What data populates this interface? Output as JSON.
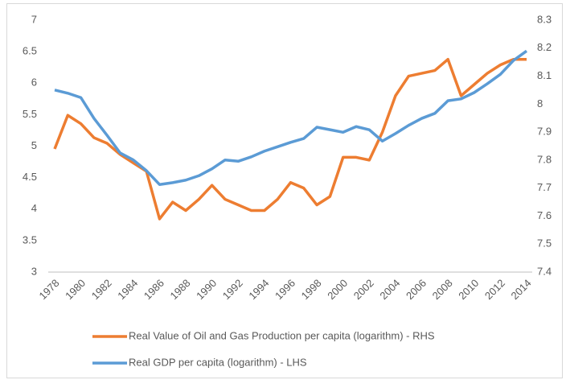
{
  "chart_data": {
    "type": "line",
    "x": [
      1978,
      1979,
      1980,
      1981,
      1982,
      1983,
      1984,
      1985,
      1986,
      1987,
      1988,
      1989,
      1990,
      1991,
      1992,
      1993,
      1994,
      1995,
      1996,
      1997,
      1998,
      1999,
      2000,
      2001,
      2002,
      2003,
      2004,
      2005,
      2006,
      2007,
      2008,
      2009,
      2010,
      2011,
      2012,
      2013,
      2014
    ],
    "xlim": [
      1978,
      2014
    ],
    "xticks": [
      1978,
      1980,
      1982,
      1984,
      1986,
      1988,
      1990,
      1992,
      1994,
      1996,
      1998,
      2000,
      2002,
      2004,
      2006,
      2008,
      2010,
      2012,
      2014
    ],
    "ylim": [
      3,
      7
    ],
    "yticks": [
      3,
      3.5,
      4,
      4.5,
      5,
      5.5,
      6,
      6.5,
      7
    ],
    "y2lim": [
      7.4,
      8.3
    ],
    "y2ticks": [
      7.4,
      7.5,
      7.6,
      7.7,
      7.8,
      7.9,
      8,
      8.1,
      8.2,
      8.3
    ],
    "legend": "bottom",
    "series": [
      {
        "name": "Real Value of Oil and Gas Production per capita (logarithm) - RHS",
        "color": "#ed7d31",
        "axis": "y2",
        "values": [
          7.84,
          7.96,
          7.93,
          7.88,
          7.86,
          7.82,
          7.79,
          7.76,
          7.59,
          7.65,
          7.62,
          7.66,
          7.71,
          7.66,
          7.64,
          7.62,
          7.62,
          7.66,
          7.72,
          7.7,
          7.64,
          7.67,
          7.81,
          7.81,
          7.8,
          7.9,
          8.03,
          8.1,
          8.11,
          8.12,
          8.16,
          8.03,
          8.07,
          8.11,
          8.14,
          8.16,
          8.16
        ]
      },
      {
        "name": "Real GDP per capita (logarithm) - LHS",
        "color": "#5b9bd5",
        "axis": "y",
        "values": [
          5.89,
          5.84,
          5.77,
          5.44,
          5.17,
          4.89,
          4.78,
          4.61,
          4.39,
          4.42,
          4.46,
          4.53,
          4.64,
          4.78,
          4.76,
          4.83,
          4.92,
          4.99,
          5.06,
          5.12,
          5.3,
          5.26,
          5.22,
          5.31,
          5.26,
          5.08,
          5.2,
          5.33,
          5.44,
          5.52,
          5.72,
          5.75,
          5.85,
          5.99,
          6.14,
          6.36,
          6.51
        ]
      }
    ]
  }
}
